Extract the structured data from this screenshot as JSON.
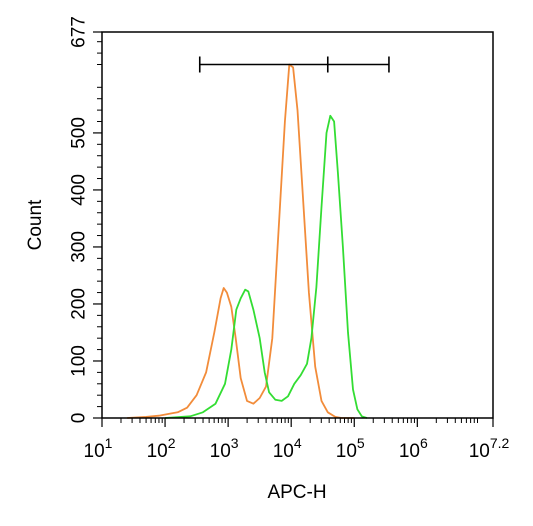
{
  "chart_data": {
    "type": "line",
    "title": "",
    "xlabel": "APC-H",
    "ylabel": "Count",
    "x_scale": "log",
    "xlim": [
      1,
      7.2
    ],
    "ylim": [
      0,
      677
    ],
    "x_ticks": [
      {
        "base": "10",
        "exp": "1",
        "value": 1
      },
      {
        "base": "10",
        "exp": "2",
        "value": 2
      },
      {
        "base": "10",
        "exp": "3",
        "value": 3
      },
      {
        "base": "10",
        "exp": "4",
        "value": 4
      },
      {
        "base": "10",
        "exp": "5",
        "value": 5
      },
      {
        "base": "10",
        "exp": "6",
        "value": 6
      },
      {
        "base": "10",
        "exp": "7.2",
        "value": 7.2
      }
    ],
    "y_ticks": [
      {
        "label": "0",
        "value": 0
      },
      {
        "label": "100",
        "value": 100
      },
      {
        "label": "200",
        "value": 200
      },
      {
        "label": "300",
        "value": 300
      },
      {
        "label": "400",
        "value": 400
      },
      {
        "label": "500",
        "value": 500
      },
      {
        "label": "677",
        "value": 677
      }
    ],
    "gate": {
      "x_start": 2.55,
      "x_mid": 4.58,
      "x_end": 5.55,
      "y": 620
    },
    "series": [
      {
        "color": "#F28C3A",
        "points": [
          [
            1.4,
            0
          ],
          [
            1.7,
            2
          ],
          [
            1.9,
            4
          ],
          [
            2.1,
            8
          ],
          [
            2.2,
            10
          ],
          [
            2.35,
            18
          ],
          [
            2.5,
            40
          ],
          [
            2.65,
            80
          ],
          [
            2.78,
            150
          ],
          [
            2.88,
            210
          ],
          [
            2.93,
            228
          ],
          [
            2.98,
            220
          ],
          [
            3.05,
            195
          ],
          [
            3.12,
            140
          ],
          [
            3.2,
            70
          ],
          [
            3.3,
            30
          ],
          [
            3.4,
            25
          ],
          [
            3.5,
            35
          ],
          [
            3.6,
            55
          ],
          [
            3.7,
            140
          ],
          [
            3.8,
            330
          ],
          [
            3.9,
            520
          ],
          [
            3.97,
            620
          ],
          [
            4.03,
            615
          ],
          [
            4.1,
            540
          ],
          [
            4.18,
            400
          ],
          [
            4.28,
            220
          ],
          [
            4.38,
            90
          ],
          [
            4.48,
            30
          ],
          [
            4.58,
            10
          ],
          [
            4.7,
            2
          ],
          [
            4.8,
            0
          ],
          [
            5.0,
            0
          ]
        ]
      },
      {
        "color": "#33DD33",
        "points": [
          [
            2.0,
            0
          ],
          [
            2.4,
            3
          ],
          [
            2.6,
            10
          ],
          [
            2.8,
            25
          ],
          [
            2.95,
            60
          ],
          [
            3.05,
            120
          ],
          [
            3.13,
            190
          ],
          [
            3.2,
            210
          ],
          [
            3.27,
            225
          ],
          [
            3.32,
            222
          ],
          [
            3.4,
            190
          ],
          [
            3.5,
            140
          ],
          [
            3.58,
            80
          ],
          [
            3.65,
            45
          ],
          [
            3.75,
            32
          ],
          [
            3.85,
            30
          ],
          [
            3.95,
            38
          ],
          [
            4.05,
            60
          ],
          [
            4.15,
            75
          ],
          [
            4.25,
            95
          ],
          [
            4.32,
            140
          ],
          [
            4.4,
            230
          ],
          [
            4.48,
            370
          ],
          [
            4.56,
            500
          ],
          [
            4.62,
            530
          ],
          [
            4.68,
            520
          ],
          [
            4.74,
            430
          ],
          [
            4.82,
            300
          ],
          [
            4.9,
            150
          ],
          [
            4.98,
            50
          ],
          [
            5.05,
            15
          ],
          [
            5.12,
            3
          ],
          [
            5.2,
            0
          ]
        ]
      }
    ]
  }
}
